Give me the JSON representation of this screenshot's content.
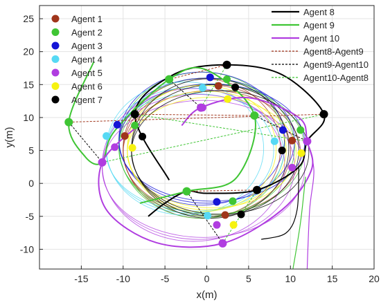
{
  "chart_data": {
    "type": "line",
    "xlabel": "x(m)",
    "ylabel": "y(m)",
    "xlim": [
      -20,
      20
    ],
    "ylim": [
      -13,
      27
    ],
    "xticks": [
      -15,
      -10,
      -5,
      0,
      5,
      10,
      15,
      20
    ],
    "yticks": [
      -10,
      -5,
      0,
      5,
      10,
      15,
      20,
      25
    ],
    "grid": true,
    "legend_left": {
      "placement": "top-left",
      "entries": [
        {
          "name": "Agent 1",
          "color": "#a0351b"
        },
        {
          "name": "Agent 2",
          "color": "#3fc534"
        },
        {
          "name": "Agent 3",
          "color": "#1414d6"
        },
        {
          "name": "Agent 4",
          "color": "#56d9f4"
        },
        {
          "name": "Agent 5",
          "color": "#b03de0"
        },
        {
          "name": "Agent 6",
          "color": "#f6f210"
        },
        {
          "name": "Agent 7",
          "color": "#000000"
        }
      ]
    },
    "legend_right": {
      "placement": "top-right",
      "entries": [
        {
          "name": "Agent 8",
          "color": "#000000",
          "style": "solid"
        },
        {
          "name": "Agent 9",
          "color": "#3fc534",
          "style": "solid"
        },
        {
          "name": "Agent 10",
          "color": "#b03de0",
          "style": "solid"
        },
        {
          "name": "Agent8-Agent9",
          "color": "#a0351b",
          "style": "dashed"
        },
        {
          "name": "Agent9-Agent10",
          "color": "#000000",
          "style": "dashed"
        },
        {
          "name": "Agent10-Agent8",
          "color": "#3fc534",
          "style": "dashed"
        }
      ]
    },
    "orbits": [
      {
        "agent": "Agent 1",
        "color": "#a0351b",
        "cx": 0,
        "cy": 5,
        "rx": 10,
        "ry": 10
      },
      {
        "agent": "Agent 2",
        "color": "#3fc534",
        "cx": 0,
        "cy": 5.5,
        "rx": 10.5,
        "ry": 10.5
      },
      {
        "agent": "Agent 3",
        "color": "#1414d6",
        "cx": 0,
        "cy": 6.5,
        "rx": 10.5,
        "ry": 9.5
      },
      {
        "agent": "Agent 4",
        "color": "#56d9f4",
        "cx": -2,
        "cy": 5,
        "rx": 10,
        "ry": 9.5
      },
      {
        "agent": "Agent 5",
        "color": "#b03de0",
        "cx": -1,
        "cy": 2.5,
        "rx": 11.5,
        "ry": 11
      },
      {
        "agent": "Agent 6",
        "color": "#f6f210",
        "cx": 0,
        "cy": 5,
        "rx": 9.5,
        "ry": 9
      },
      {
        "agent": "Agent 7",
        "color": "#000000",
        "cx": 1,
        "cy": 5,
        "rx": 10,
        "ry": 10
      }
    ],
    "agents_1_7_markers": [
      {
        "agent": "Agent 1",
        "color": "#a0351b",
        "points": [
          [
            -9.8,
            7.2
          ],
          [
            1.4,
            14.8
          ],
          [
            10.2,
            6.5
          ],
          [
            2.2,
            -4.8
          ]
        ]
      },
      {
        "agent": "Agent 2",
        "color": "#3fc534",
        "points": [
          [
            -8.6,
            8.8
          ],
          [
            2.4,
            15.8
          ],
          [
            11.2,
            8.1
          ],
          [
            3.1,
            -2.7
          ]
        ]
      },
      {
        "agent": "Agent 3",
        "color": "#1414d6",
        "points": [
          [
            -10.7,
            8.9
          ],
          [
            0.4,
            16.1
          ],
          [
            9.1,
            8.1
          ],
          [
            1.2,
            -2.8
          ]
        ]
      },
      {
        "agent": "Agent 4",
        "color": "#56d9f4",
        "points": [
          [
            -12.0,
            7.2
          ],
          [
            -0.5,
            14.5
          ],
          [
            8.1,
            6.4
          ],
          [
            0.1,
            -4.9
          ]
        ]
      },
      {
        "agent": "Agent 5",
        "color": "#b03de0",
        "points": [
          [
            -11.0,
            5.5
          ],
          [
            -0.5,
            11.5
          ],
          [
            10.2,
            2.4
          ],
          [
            1.2,
            -6.3
          ]
        ]
      },
      {
        "agent": "Agent 6",
        "color": "#f6f210",
        "points": [
          [
            -8.9,
            5.4
          ],
          [
            2.5,
            12.8
          ],
          [
            11.3,
            4.6
          ],
          [
            3.2,
            -6.3
          ]
        ]
      },
      {
        "agent": "Agent 7",
        "color": "#000000",
        "points": [
          [
            -7.7,
            7.1
          ],
          [
            3.4,
            14.6
          ],
          [
            9.0,
            5.0
          ],
          [
            4.1,
            -4.7
          ]
        ]
      }
    ],
    "agent_8_markers": [
      [
        2.4,
        18.0
      ],
      [
        14.0,
        10.5
      ],
      [
        6.0,
        -1.0
      ],
      [
        -8.6,
        10.5
      ]
    ],
    "agent_9_markers": [
      [
        -16.5,
        9.3
      ],
      [
        -4.5,
        15.8
      ],
      [
        5.7,
        10.3
      ],
      [
        -2.4,
        -1.2
      ]
    ],
    "agent_10_markers": [
      [
        -12.5,
        3.2
      ],
      [
        -0.7,
        11.5
      ],
      [
        12.0,
        6.4
      ],
      [
        1.9,
        -9.1
      ]
    ],
    "agent_8_path": [
      [
        -4.5,
        0.5
      ],
      [
        -8.6,
        10.5
      ],
      [
        -4.0,
        16.5
      ],
      [
        2.4,
        18.0
      ],
      [
        9.0,
        16.5
      ],
      [
        14.0,
        10.5
      ],
      [
        12.0,
        6.4
      ],
      [
        11.0,
        2.5
      ],
      [
        6.0,
        -1.0
      ],
      [
        0.0,
        -1.5
      ],
      [
        -2.4,
        -1.2
      ],
      [
        -5.0,
        -3.0
      ],
      [
        -7.0,
        -5.0
      ]
    ],
    "agent_9_path": [
      [
        -13.5,
        18.5
      ],
      [
        -16.5,
        9.3
      ],
      [
        -14.5,
        4.0
      ],
      [
        -12.5,
        3.2
      ],
      [
        -11.0,
        8.0
      ],
      [
        -4.5,
        15.8
      ],
      [
        0.0,
        17.2
      ],
      [
        5.7,
        10.3
      ],
      [
        3.5,
        0.8
      ],
      [
        -2.4,
        -1.2
      ],
      [
        -8.0,
        -3.0
      ]
    ],
    "agent_10_path": [
      [
        -3.0,
        8.8
      ],
      [
        -0.7,
        11.5
      ],
      [
        5.0,
        13.0
      ],
      [
        11.0,
        10.0
      ],
      [
        12.0,
        6.4
      ],
      [
        12.5,
        2.0
      ],
      [
        9.0,
        -4.0
      ],
      [
        1.9,
        -9.1
      ],
      [
        -6.0,
        -9.0
      ],
      [
        -12.0,
        -4.0
      ],
      [
        -12.5,
        3.2
      ],
      [
        -8.0,
        9.0
      ]
    ],
    "agent_10_tail": [
      [
        12.0,
        6.4
      ],
      [
        12.8,
        2.0
      ],
      [
        12.3,
        -4.0
      ],
      [
        12.0,
        -13.0
      ]
    ],
    "agent_8_tail": [
      [
        11.0,
        2.5
      ],
      [
        10.8,
        -4.0
      ],
      [
        9.5,
        -7.5
      ],
      [
        6.5,
        -8.5
      ]
    ],
    "agent_9_tail": [
      [
        11.8,
        1.0
      ],
      [
        11.2,
        -6.0
      ],
      [
        10.3,
        -13.0
      ]
    ],
    "formation_triangles": [
      {
        "a8": [
          2.4,
          18.0
        ],
        "a9": [
          -4.5,
          15.8
        ],
        "a10": [
          -0.7,
          11.5
        ]
      },
      {
        "a8": [
          14.0,
          10.5
        ],
        "a9": [
          -16.5,
          9.3
        ],
        "a10": [
          -12.5,
          3.2
        ]
      },
      {
        "a8": [
          6.0,
          -1.0
        ],
        "a9": [
          -2.4,
          -1.2
        ],
        "a10": [
          1.9,
          -9.1
        ]
      },
      {
        "a8": [
          -8.6,
          10.5
        ],
        "a9": [
          5.7,
          10.3
        ],
        "a10": [
          12.0,
          6.4
        ]
      }
    ]
  }
}
